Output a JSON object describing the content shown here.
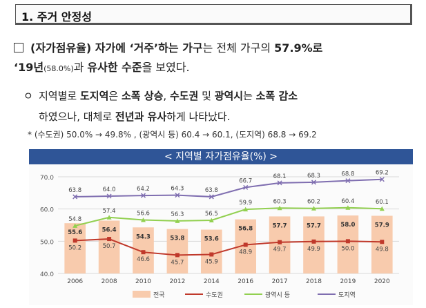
{
  "section": {
    "title": "1. 주거 안정성"
  },
  "para1": {
    "t1": "(자가점유율)",
    "t2": " 자가에 ‘거주’하는 가구",
    "t3": "는 전체 가구의 ",
    "t4": "57.9%로",
    "t5": "‘19년",
    "t6": "(58.0%)",
    "t7": "과 ",
    "t8": "유사한 수준",
    "t9": "을 보였다."
  },
  "para2": {
    "bullet": "ㅇ",
    "t1": "지역별로 ",
    "t2": "도지역",
    "t3": "은 ",
    "t4": "소폭 상승",
    "t5": ", ",
    "t6": "수도권",
    "t7": " 및 ",
    "t8": "광역시",
    "t9": "는 ",
    "t10": "소폭 감소",
    "t11": "하였으나, 대체로 ",
    "t12": "전년과 유사",
    "t13": "하게 나타났다."
  },
  "note": "* (수도권) 50.0% → 49.8% , (광역시 등) 60.4 → 60.1, (도지역) 68.8 → 69.2",
  "chart_data": {
    "type": "bar",
    "title": "< 지역별 자가점유율(%) >",
    "categories": [
      "2006",
      "2008",
      "2010",
      "2012",
      "2014",
      "2016",
      "2017",
      "2018",
      "2019",
      "2020"
    ],
    "ylim": [
      40,
      70
    ],
    "yticks": [
      "40.0",
      "50.0",
      "60.0",
      "70.0"
    ],
    "grid": true,
    "legend_position": "bottom",
    "series": [
      {
        "name": "전국",
        "kind": "bar",
        "color": "#f8cbad",
        "values": [
          55.6,
          56.4,
          54.3,
          53.8,
          53.6,
          56.8,
          57.7,
          57.7,
          58.0,
          57.9
        ]
      },
      {
        "name": "수도권",
        "kind": "line",
        "color": "#c0392b",
        "values": [
          50.2,
          50.7,
          46.6,
          45.7,
          45.9,
          48.9,
          49.7,
          49.9,
          50.0,
          49.8
        ]
      },
      {
        "name": "광역시 등",
        "kind": "line",
        "color": "#92d050",
        "values": [
          54.8,
          57.4,
          56.6,
          56.3,
          56.5,
          59.9,
          60.3,
          60.2,
          60.4,
          60.1
        ]
      },
      {
        "name": "도지역",
        "kind": "line",
        "color": "#7f6eb0",
        "values": [
          63.8,
          64.0,
          64.2,
          64.3,
          63.8,
          66.7,
          68.1,
          68.3,
          68.8,
          69.2
        ]
      }
    ]
  }
}
